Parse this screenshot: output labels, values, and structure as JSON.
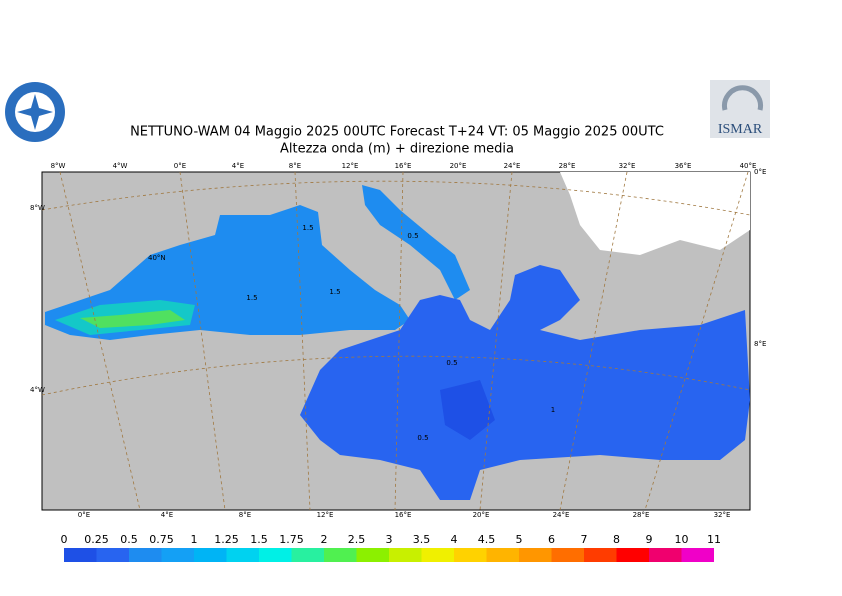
{
  "header": {
    "title": "NETTUNO-WAM  04   Maggio  2025 00UTC Forecast T+24 VT: 05   Maggio  2025 00UTC",
    "subtitle": "Altezza onda (m) + direzione media",
    "logo_right": "ISMAR"
  },
  "map": {
    "top_lon_labels": [
      "8°W",
      "4°W",
      "0°E",
      "4°E",
      "8°E",
      "12°E",
      "16°E",
      "20°E",
      "24°E",
      "28°E",
      "32°E",
      "36°E",
      "40°E"
    ],
    "bottom_lon_labels": [
      "0°E",
      "4°E",
      "8°E",
      "12°E",
      "16°E",
      "20°E",
      "24°E",
      "28°E",
      "32°E"
    ],
    "left_labels": [
      "8°W",
      "4°W"
    ],
    "other_labels": [
      "40°N",
      "8°E",
      "0°E"
    ],
    "contour_labels": [
      "1.5",
      "1.5",
      "1.5",
      "0.5",
      "0.5",
      "0.5",
      "1"
    ]
  },
  "colorbar": {
    "levels": [
      0,
      0.25,
      0.5,
      0.75,
      1,
      1.25,
      1.5,
      1.75,
      2,
      2.5,
      3,
      3.5,
      4,
      4.5,
      5,
      6,
      7,
      8,
      9,
      10,
      11
    ],
    "colors": [
      "#1e50e6",
      "#2864f0",
      "#1e8cf0",
      "#14a0f5",
      "#00b4f5",
      "#00d2f0",
      "#00f0e6",
      "#28f0a0",
      "#50f050",
      "#8cf000",
      "#c8f000",
      "#f0f000",
      "#ffd200",
      "#ffb400",
      "#ff9600",
      "#ff6e00",
      "#ff3c00",
      "#ff0000",
      "#f0006e",
      "#f000c8"
    ]
  }
}
